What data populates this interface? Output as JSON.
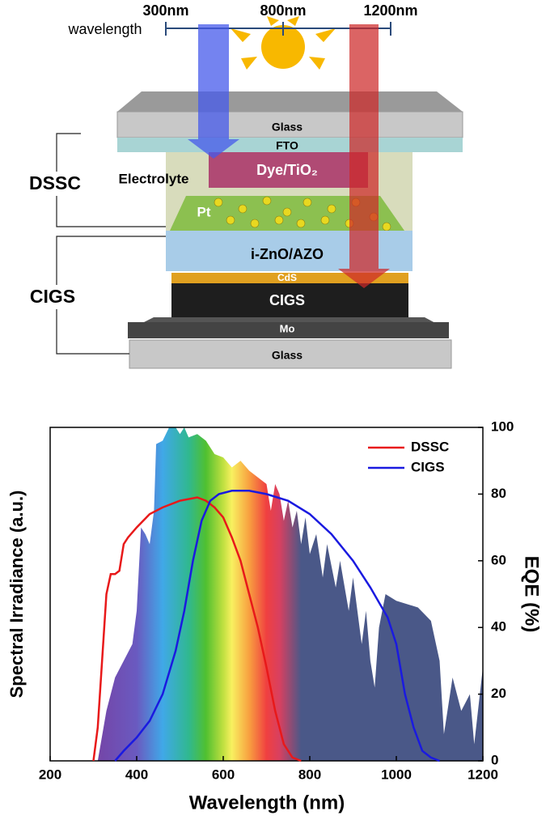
{
  "diagram": {
    "scale_label": "wavelength",
    "scale_ticks": [
      "300nm",
      "800nm",
      "1200nm"
    ],
    "layers": {
      "glass_top": "Glass",
      "fto": "FTO",
      "electrolyte": "Electrolyte",
      "dye": "Dye/TiO₂",
      "pt": "Pt",
      "zno": "i-ZnO/AZO",
      "cds": "CdS",
      "cigs": "CIGS",
      "mo": "Mo",
      "glass_bottom": "Glass"
    },
    "groups": {
      "dssc": "DSSC",
      "cigs": "CIGS"
    }
  },
  "chart_data": {
    "type": "line",
    "xlabel": "Wavelength (nm)",
    "ylabel": "Spectral Irradiance (a.u.)",
    "y2label": "EQE (%)",
    "xlim": [
      200,
      1200
    ],
    "xticks": [
      200,
      400,
      600,
      800,
      1000,
      1200
    ],
    "ylim": [
      0,
      100
    ],
    "y2lim": [
      0,
      100
    ],
    "y2ticks": [
      0,
      20,
      40,
      60,
      80,
      100
    ],
    "legend": "upper right",
    "area": {
      "x": [
        310,
        330,
        350,
        370,
        390,
        400,
        410,
        420,
        430,
        440,
        445,
        460,
        475,
        490,
        500,
        510,
        520,
        540,
        560,
        580,
        600,
        620,
        640,
        660,
        680,
        700,
        710,
        720,
        730,
        740,
        750,
        760,
        770,
        780,
        790,
        800,
        815,
        830,
        840,
        860,
        870,
        890,
        900,
        920,
        930,
        940,
        950,
        960,
        975,
        1000,
        1050,
        1080,
        1100,
        1110,
        1130,
        1150,
        1170,
        1180,
        1200
      ],
      "values": [
        0,
        15,
        25,
        30,
        35,
        45,
        70,
        68,
        65,
        75,
        95,
        96,
        100,
        100,
        98,
        100,
        97,
        98,
        96,
        92,
        91,
        88,
        90,
        87,
        85,
        83,
        75,
        83,
        80,
        72,
        78,
        70,
        75,
        65,
        73,
        62,
        68,
        55,
        65,
        52,
        60,
        45,
        55,
        35,
        45,
        30,
        22,
        40,
        50,
        48,
        46,
        42,
        30,
        8,
        25,
        15,
        20,
        5,
        28
      ]
    },
    "series": [
      {
        "name": "DSSC",
        "color": "#e8191a",
        "axis": "y2",
        "x": [
          300,
          310,
          320,
          330,
          340,
          350,
          360,
          370,
          380,
          400,
          430,
          460,
          500,
          540,
          560,
          580,
          600,
          620,
          640,
          660,
          680,
          700,
          720,
          740,
          760,
          780
        ],
        "values": [
          0,
          10,
          30,
          50,
          56,
          56,
          57,
          65,
          67,
          70,
          74,
          76,
          78,
          79,
          78,
          76,
          73,
          67,
          60,
          50,
          40,
          28,
          15,
          5,
          1,
          0
        ]
      },
      {
        "name": "CIGS",
        "color": "#1a1ae0",
        "axis": "y2",
        "x": [
          350,
          370,
          400,
          430,
          460,
          490,
          510,
          530,
          550,
          570,
          590,
          620,
          660,
          700,
          750,
          800,
          850,
          900,
          940,
          980,
          1000,
          1020,
          1040,
          1060,
          1080,
          1100
        ],
        "values": [
          0,
          3,
          7,
          12,
          20,
          33,
          45,
          60,
          72,
          78,
          80,
          81,
          81,
          80,
          78,
          74,
          68,
          60,
          52,
          43,
          35,
          20,
          10,
          3,
          1,
          0
        ]
      }
    ]
  }
}
